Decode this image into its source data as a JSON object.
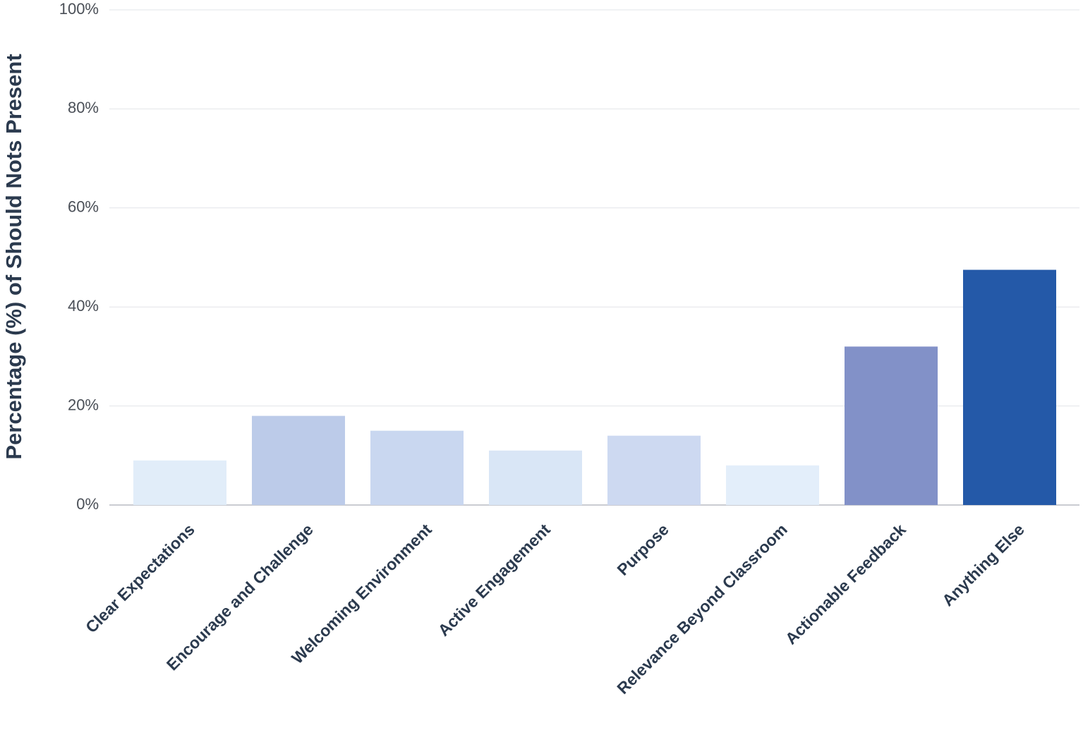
{
  "chart_data": {
    "type": "bar",
    "y_axis_label": "Percentage (%) of Should Nots Present",
    "categories": [
      "Clear Expectations",
      "Encourage and Challenge",
      "Welcoming Environment",
      "Active Engagement",
      "Purpose",
      "Relevance Beyond Classroom",
      "Actionable Feedback",
      "Anything Else"
    ],
    "values": [
      9,
      18,
      15,
      11,
      14,
      8,
      32,
      47.5
    ],
    "colors": [
      "#e1edf9",
      "#bccbe9",
      "#c9d7f0",
      "#d9e6f6",
      "#cdd9f1",
      "#e3eefa",
      "#8291c8",
      "#2459a8"
    ],
    "ylim": [
      0,
      100
    ],
    "yticks": [
      {
        "value": 0,
        "label": "0%"
      },
      {
        "value": 20,
        "label": "20%"
      },
      {
        "value": 40,
        "label": "40%"
      },
      {
        "value": 60,
        "label": "60%"
      },
      {
        "value": 80,
        "label": "80%"
      },
      {
        "value": 100,
        "label": "100%"
      }
    ],
    "grid": true
  }
}
